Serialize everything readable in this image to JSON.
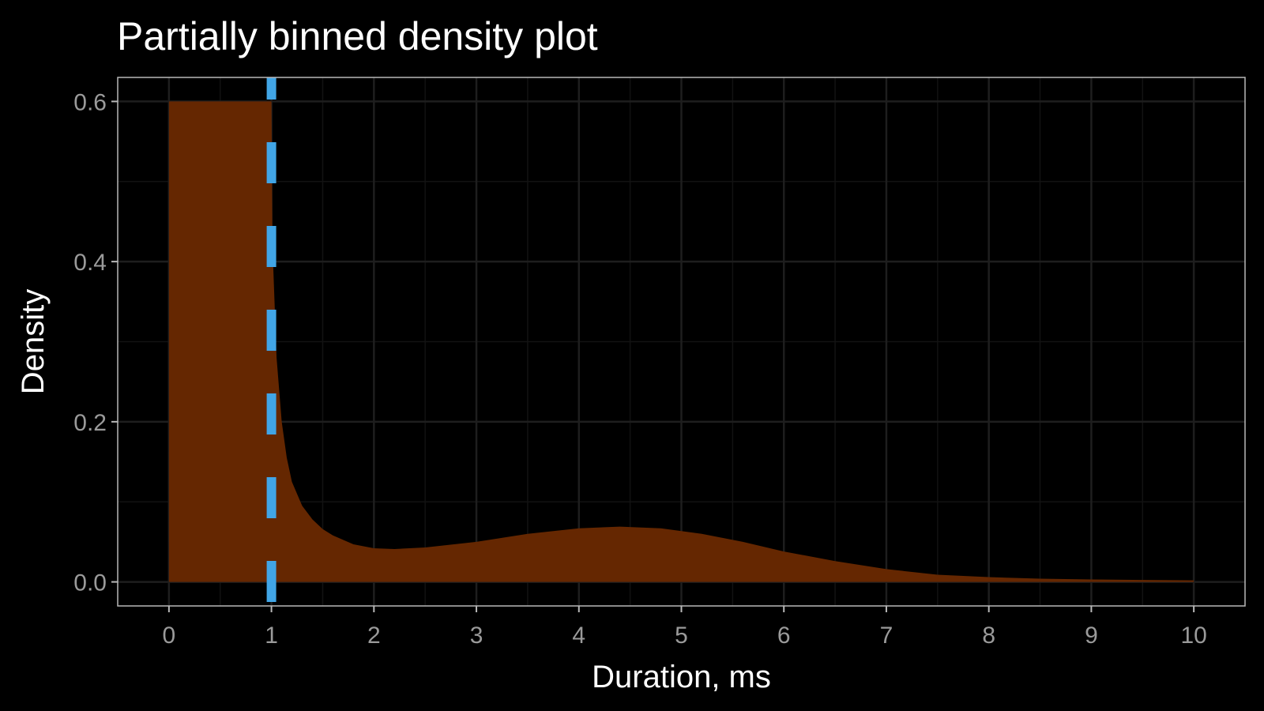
{
  "chart_data": {
    "type": "area",
    "title": "Partially binned density plot",
    "xlabel": "Duration, ms",
    "ylabel": "Density",
    "xlim": [
      -0.5,
      10.5
    ],
    "ylim": [
      -0.03,
      0.63
    ],
    "x_ticks": [
      0,
      1,
      2,
      3,
      4,
      5,
      6,
      7,
      8,
      9,
      10
    ],
    "y_ticks": [
      0.0,
      0.2,
      0.4,
      0.6
    ],
    "y_tick_labels": [
      "0.0",
      "0.2",
      "0.4",
      "0.6"
    ],
    "grid": true,
    "legend": "none",
    "series": [
      {
        "fill_color": "#652701",
        "x": [
          0,
          1.0,
          1.01,
          1.05,
          1.1,
          1.15,
          1.2,
          1.3,
          1.4,
          1.5,
          1.6,
          1.8,
          2.0,
          2.2,
          2.5,
          3.0,
          3.5,
          4.0,
          4.4,
          4.8,
          5.2,
          5.6,
          6.0,
          6.5,
          7.0,
          7.5,
          8.0,
          8.5,
          9.0,
          9.5,
          10.0
        ],
        "y": [
          0.6,
          0.6,
          0.42,
          0.28,
          0.2,
          0.155,
          0.125,
          0.095,
          0.078,
          0.066,
          0.058,
          0.047,
          0.042,
          0.041,
          0.043,
          0.05,
          0.06,
          0.067,
          0.069,
          0.067,
          0.06,
          0.05,
          0.038,
          0.026,
          0.016,
          0.009,
          0.006,
          0.004,
          0.003,
          0.0025,
          0.002
        ]
      }
    ],
    "reference_line": {
      "orientation": "vertical",
      "x": 1,
      "style": "dashed",
      "color": "#41a5e6"
    },
    "colors": {
      "background": "#000000",
      "panel_border": "#b8b8b8",
      "grid_major": "#1e1e1e",
      "grid_minor": "#121212"
    }
  }
}
